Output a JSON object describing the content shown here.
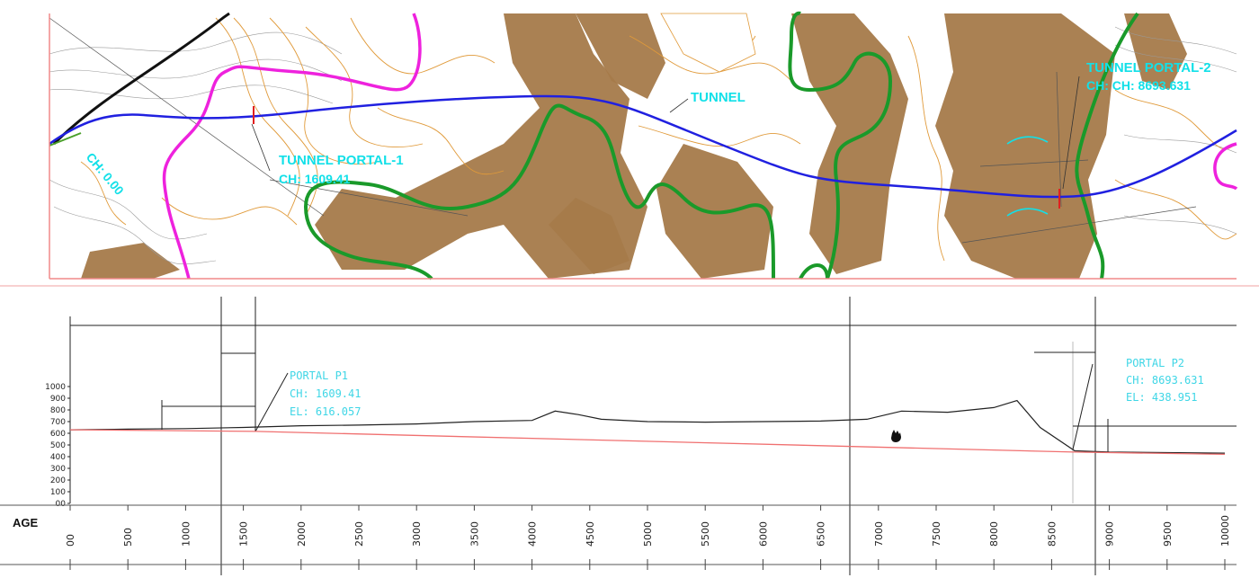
{
  "plan_view": {
    "tunnel_portal_1": "TUNNEL PORTAL-1",
    "tunnel_portal_1_ch": "CH: 1609.41",
    "tunnel_label": "TUNNEL",
    "tunnel_portal_2": "TUNNEL PORTAL-2",
    "tunnel_portal_2_ch": "CH: CH: 8693.631",
    "ch_start": "CH: 0.00"
  },
  "profile_view": {
    "portal_p1": {
      "title": "PORTAL P1",
      "ch": "CH: 1609.41",
      "el": "EL: 616.057"
    },
    "portal_p2": {
      "title": "PORTAL P2",
      "ch": "CH: 8693.631",
      "el": "EL: 438.951"
    },
    "row_label": "AGE",
    "y_ticks": [
      "1000",
      "900",
      "800",
      "700",
      "600",
      "500",
      "400",
      "300",
      "200",
      "100",
      "00"
    ],
    "x_ticks": [
      "00",
      "500",
      "1000",
      "1500",
      "2000",
      "2500",
      "3000",
      "3500",
      "4000",
      "4500",
      "5000",
      "5500",
      "6000",
      "6500",
      "7000",
      "7500",
      "8000",
      "8500",
      "9000",
      "9500",
      "10000"
    ]
  },
  "chart_data": {
    "type": "line",
    "series": [
      {
        "values_x": [
          0,
          500,
          1000,
          1500,
          2000,
          2500,
          3000,
          3500,
          4000,
          4200,
          4400,
          4600,
          5000,
          5500,
          6000,
          6500,
          6900,
          7200,
          7600,
          8000,
          8200,
          8400,
          8700,
          9000,
          10000
        ],
        "values_y": [
          630,
          635,
          640,
          650,
          665,
          670,
          680,
          700,
          710,
          790,
          760,
          720,
          700,
          695,
          700,
          705,
          720,
          790,
          780,
          820,
          880,
          650,
          450,
          440,
          430
        ]
      },
      {
        "values_x": [
          0,
          1609.41,
          8693.631,
          10000
        ],
        "values_y": [
          630,
          616.057,
          438.951,
          420
        ]
      }
    ],
    "x_range": [
      0,
      10000
    ],
    "y_range": [
      0,
      1000
    ]
  },
  "colors": {
    "alignment": "#2020e0",
    "boundary_magenta": "#ee22dd",
    "boundary_green": "#1a9a2a",
    "annotation": "#12e0e8",
    "gradient_line": "#f07070",
    "terrain": "#a57a4a"
  }
}
